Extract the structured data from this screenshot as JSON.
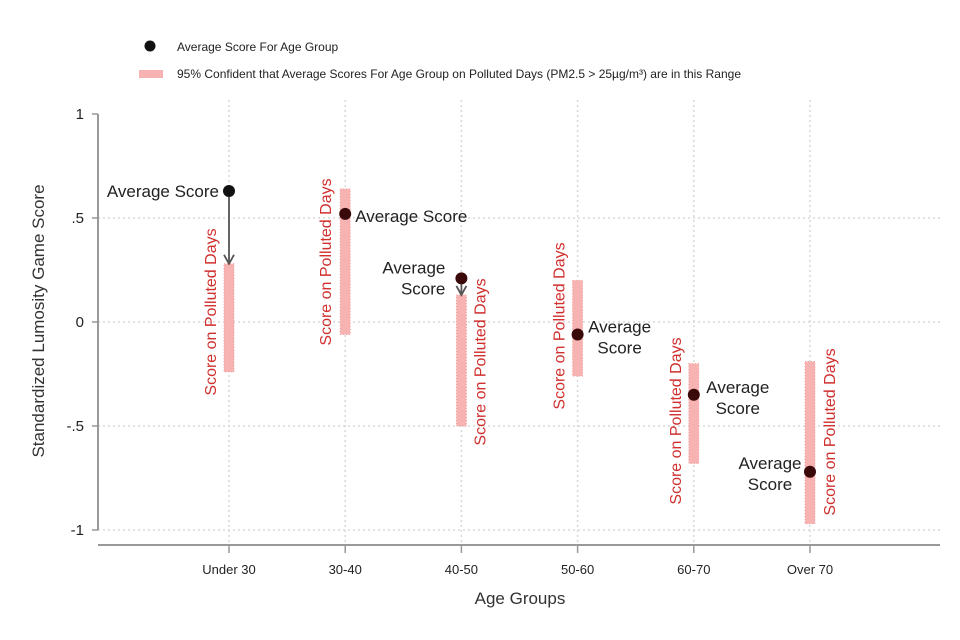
{
  "chart_data": {
    "type": "scatter",
    "title": "",
    "xlabel": "Age Groups",
    "ylabel": "Standardized Lumosity Game Score",
    "ylim": [
      -1,
      1
    ],
    "y_ticks": [
      1,
      0.5,
      0,
      -0.5,
      -1
    ],
    "y_tick_labels": [
      "1",
      ".5",
      "0",
      "-.5",
      "-1"
    ],
    "categories": [
      "Under 30",
      "30-40",
      "40-50",
      "50-60",
      "60-70",
      "Over 70"
    ],
    "grid": true,
    "legend": {
      "placement": "top-left",
      "entries": [
        {
          "marker": "dot",
          "text": "Average Score For Age Group"
        },
        {
          "marker": "band",
          "text": "95% Confident that Average Scores For Age Group on Polluted Days (PM2.5 > 25µg/m³) are in this Range"
        }
      ]
    },
    "series": [
      {
        "name": "Average Score For Age Group",
        "values": [
          0.63,
          0.52,
          0.21,
          -0.06,
          -0.35,
          -0.72
        ]
      },
      {
        "name": "95% Confident that Average Scores For Age Group on Polluted Days (PM2.5 > 25µg/m³) are in this Range",
        "low": [
          -0.24,
          -0.06,
          -0.5,
          -0.26,
          -0.68,
          -0.97
        ],
        "high": [
          0.28,
          0.64,
          0.13,
          0.2,
          -0.2,
          -0.19
        ]
      }
    ],
    "annotations": {
      "average_label": "Average Score",
      "average_label_lines": [
        "Average",
        "Score"
      ],
      "range_label": "Score on Polluted Days",
      "arrows_from_average_to_range": [
        "Under 30",
        "40-50"
      ]
    },
    "colors": {
      "band": "#f7b2b2",
      "band_edge": "#f19a9a",
      "dot": "#111111",
      "dot_dark_red": "#3a0a0a",
      "range_text": "#d0302e",
      "grid": "#d8d8d8",
      "axis": "#999999",
      "arrow": "#555555"
    }
  }
}
